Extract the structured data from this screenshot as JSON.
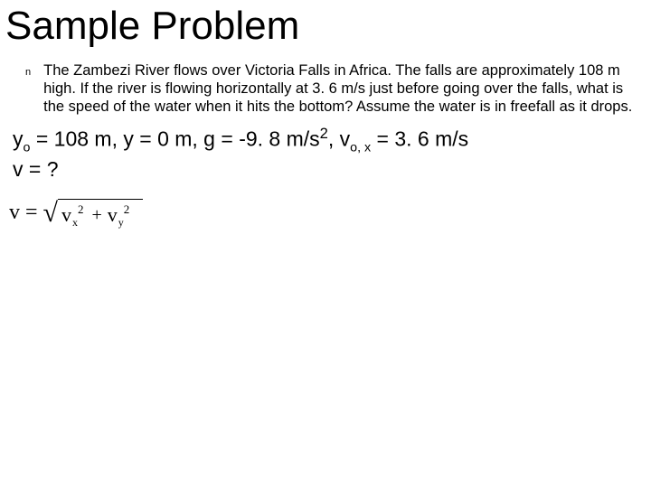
{
  "title": "Sample Problem",
  "bullet_glyph": "n",
  "problem_text": "The Zambezi River flows over Victoria Falls in Africa. The falls are approximately 108 m high. If the river is flowing horizontally at 3. 6 m/s just before going over the falls, what is the speed of the water when it hits the bottom? Assume the water is in freefall as it drops.",
  "givens_line1_parts": {
    "p1": "y",
    "sub1": "o",
    "p2": " = 108 m, y = 0 m, g = -9. 8 m/s",
    "sup1": "2",
    "p3": ", v",
    "sub2": "o, x",
    "p4": " = 3. 6 m/s"
  },
  "givens_line2": "v = ?",
  "formula": {
    "lhs": "v",
    "eq": "=",
    "term1_base": "v",
    "term1_sub": "x",
    "term1_sup": "2",
    "plus": "+",
    "term2_base": "v",
    "term2_sub": "y",
    "term2_sup": "2"
  },
  "colors": {
    "text": "#000000",
    "background": "#ffffff"
  },
  "fonts": {
    "title_family": "Comic Sans MS",
    "title_size_pt": 33,
    "body_family": "Arial",
    "body_size_pt": 12,
    "givens_family": "Comic Sans MS",
    "givens_size_pt": 17,
    "formula_family": "Times New Roman",
    "formula_size_pt": 18
  }
}
